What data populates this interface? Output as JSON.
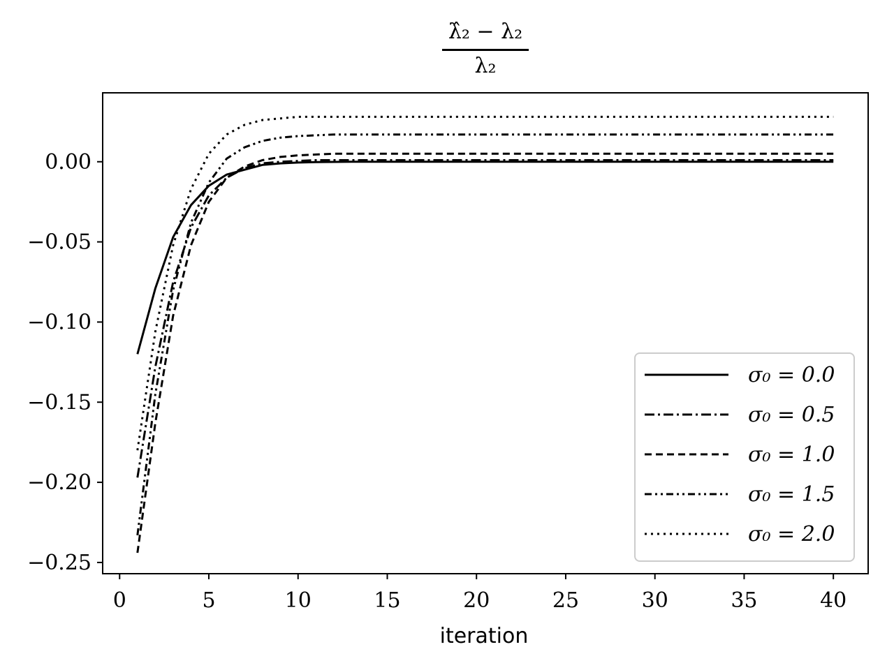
{
  "chart_data": {
    "type": "line",
    "title_numerator": "λ̂₂ − λ₂",
    "title_denominator": "λ₂",
    "xlabel": "iteration",
    "ylabel": "",
    "xlim": [
      -0.95,
      41.95
    ],
    "ylim": [
      -0.257,
      0.043
    ],
    "xticks": [
      0,
      5,
      10,
      15,
      20,
      25,
      30,
      35,
      40
    ],
    "xtick_labels": [
      "0",
      "5",
      "10",
      "15",
      "20",
      "25",
      "30",
      "35",
      "40"
    ],
    "yticks": [
      0.0,
      -0.05,
      -0.1,
      -0.15,
      -0.2,
      -0.25
    ],
    "ytick_labels": [
      "0.00",
      "−0.05",
      "−0.10",
      "−0.15",
      "−0.20",
      "−0.25"
    ],
    "grid": false,
    "legend_position": "lower-right",
    "x": [
      1,
      2,
      3,
      4,
      5,
      6,
      7,
      8,
      9,
      10,
      11,
      12,
      13,
      14,
      15,
      16,
      17,
      18,
      19,
      20,
      21,
      22,
      23,
      24,
      25,
      26,
      27,
      28,
      29,
      30,
      31,
      32,
      33,
      34,
      35,
      36,
      37,
      38,
      39,
      40
    ],
    "series": [
      {
        "name": "σ₀ = 0.0",
        "dash": "solid",
        "values": [
          -0.12,
          -0.079,
          -0.047,
          -0.027,
          -0.015,
          -0.008,
          -0.005,
          -0.002,
          -0.001,
          -0.0005,
          -0.0002,
          -0.0001,
          0,
          0,
          0,
          0,
          0,
          0,
          0,
          0,
          0,
          0,
          0,
          0,
          0,
          0,
          0,
          0,
          0,
          0,
          0,
          0,
          0,
          0,
          0,
          0,
          0,
          0,
          0,
          0
        ]
      },
      {
        "name": "σ₀ = 0.5",
        "dash": "dashdot",
        "values": [
          -0.197,
          -0.128,
          -0.075,
          -0.041,
          -0.021,
          -0.01,
          -0.004,
          -0.001,
          0.0,
          0.0005,
          0.001,
          0.001,
          0.001,
          0.001,
          0.001,
          0.001,
          0.001,
          0.001,
          0.001,
          0.001,
          0.001,
          0.001,
          0.001,
          0.001,
          0.001,
          0.001,
          0.001,
          0.001,
          0.001,
          0.001,
          0.001,
          0.001,
          0.001,
          0.001,
          0.001,
          0.001,
          0.001,
          0.001,
          0.001,
          0.001
        ]
      },
      {
        "name": "σ₀ = 1.0",
        "dash": "dashed",
        "values": [
          -0.244,
          -0.163,
          -0.096,
          -0.052,
          -0.025,
          -0.01,
          -0.003,
          0.001,
          0.003,
          0.004,
          0.0045,
          0.005,
          0.005,
          0.005,
          0.005,
          0.005,
          0.005,
          0.005,
          0.005,
          0.005,
          0.005,
          0.005,
          0.005,
          0.005,
          0.005,
          0.005,
          0.005,
          0.005,
          0.005,
          0.005,
          0.005,
          0.005,
          0.005,
          0.005,
          0.005,
          0.005,
          0.005,
          0.005,
          0.005,
          0.005
        ]
      },
      {
        "name": "σ₀ = 1.5",
        "dash": "dashdotdot",
        "values": [
          -0.233,
          -0.145,
          -0.08,
          -0.038,
          -0.013,
          0.002,
          0.009,
          0.013,
          0.015,
          0.016,
          0.0165,
          0.017,
          0.017,
          0.017,
          0.017,
          0.017,
          0.017,
          0.017,
          0.017,
          0.017,
          0.017,
          0.017,
          0.017,
          0.017,
          0.017,
          0.017,
          0.017,
          0.017,
          0.017,
          0.017,
          0.017,
          0.017,
          0.017,
          0.017,
          0.017,
          0.017,
          0.017,
          0.017,
          0.017,
          0.017
        ]
      },
      {
        "name": "σ₀ = 2.0",
        "dash": "dotted",
        "values": [
          -0.18,
          -0.106,
          -0.052,
          -0.017,
          0.005,
          0.017,
          0.023,
          0.026,
          0.027,
          0.028,
          0.028,
          0.028,
          0.028,
          0.028,
          0.028,
          0.028,
          0.028,
          0.028,
          0.028,
          0.028,
          0.028,
          0.028,
          0.028,
          0.028,
          0.028,
          0.028,
          0.028,
          0.028,
          0.028,
          0.028,
          0.028,
          0.028,
          0.028,
          0.028,
          0.028,
          0.028,
          0.028,
          0.028,
          0.028,
          0.028
        ]
      }
    ]
  }
}
